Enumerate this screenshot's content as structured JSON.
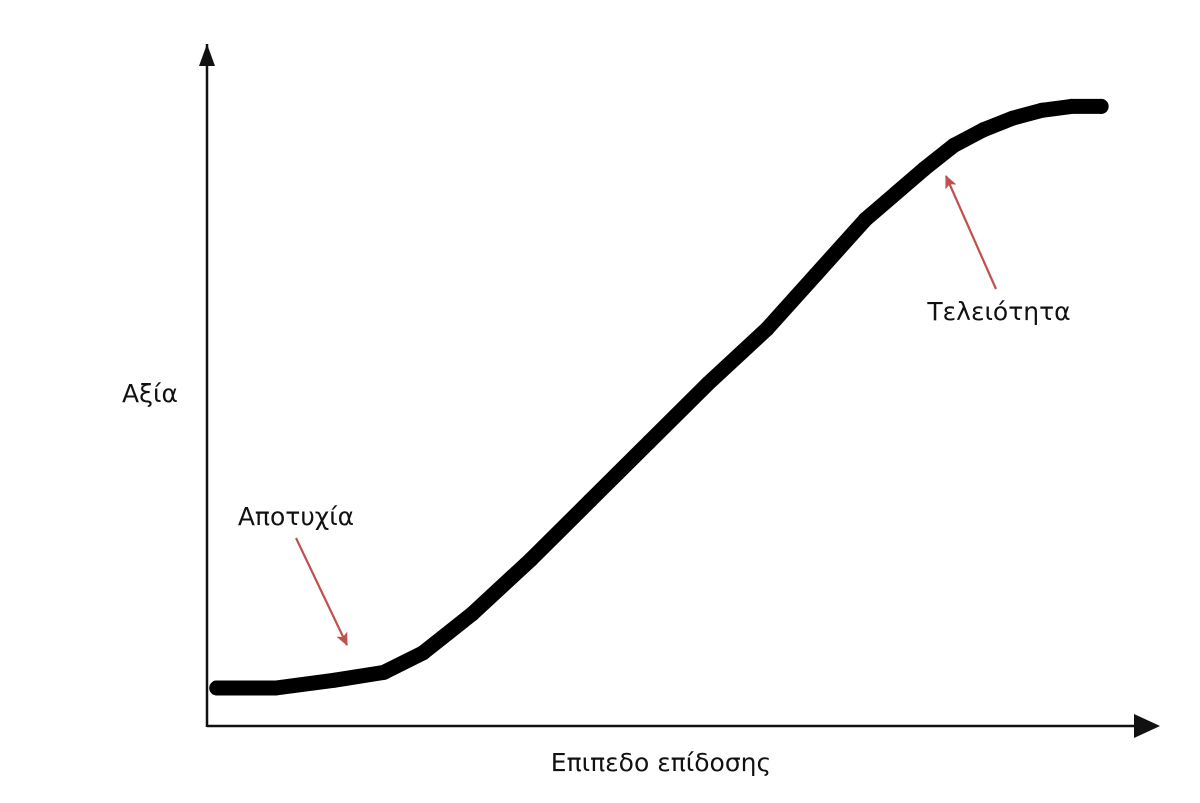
{
  "chart_data": {
    "type": "line",
    "xlabel": "Επιπεδο επίδοσης",
    "ylabel": "Αξία",
    "series": [
      {
        "x": [
          0,
          6,
          12,
          17,
          21,
          26,
          32,
          38,
          44,
          50,
          56,
          61,
          66,
          72,
          75,
          78,
          81,
          84,
          87,
          90
        ],
        "y": [
          0,
          0,
          2,
          4,
          9,
          19,
          33,
          48,
          63,
          78,
          92,
          106,
          120,
          133,
          139,
          143,
          146,
          148,
          149,
          149
        ]
      }
    ],
    "xlim": [
      -1,
      96
    ],
    "ylim": [
      -10,
      165
    ],
    "annotations": [
      {
        "text": "Αποτυχία",
        "target": [
          14,
          5
        ]
      },
      {
        "text": "Τελειότητα",
        "target": [
          79,
          139
        ]
      }
    ],
    "colors": {
      "line": "#000000",
      "axis": "#111111",
      "annotation_arrow": "#c0504d"
    },
    "grid": false
  }
}
